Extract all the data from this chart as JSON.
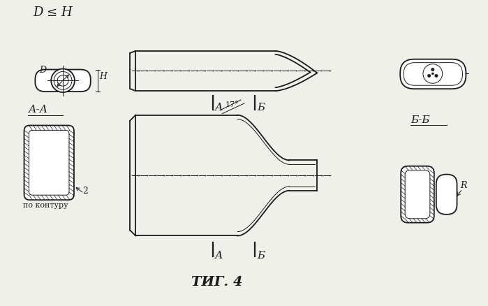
{
  "bg_color": "#f0f0eb",
  "title": "ΤИГ. 4",
  "formula": "D ≤ H",
  "label_AA": "А-А",
  "label_BB": "Б-Б",
  "label_A": "А",
  "label_B": "Б",
  "label_2": "2",
  "label_contour": "по контуру",
  "label_angle": "17°",
  "label_D": "D",
  "label_H": "H",
  "label_R": "R",
  "line_color": "#1a1a1a",
  "line_width": 1.3,
  "thin_line": 0.7
}
